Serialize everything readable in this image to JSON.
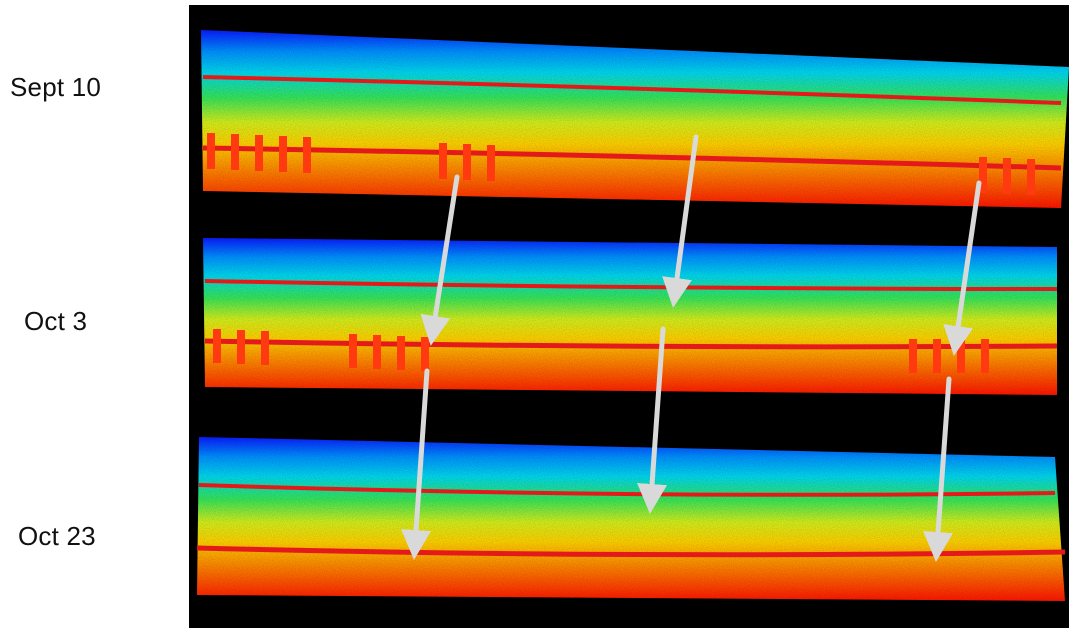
{
  "labels": {
    "scan1": "Sept 10",
    "scan2": "Oct 3",
    "scan3": "Oct 23"
  },
  "image": {
    "description_icon": "lidar-point-cloud-comparison",
    "background": "#000000",
    "rail_color": "#e41a1a",
    "arrow_color": "#d9d9d9",
    "colormap": [
      "#0a1cff",
      "#00c8ff",
      "#2ee86a",
      "#d6f21e",
      "#ffd000",
      "#ff7a00",
      "#ff1a00"
    ]
  }
}
